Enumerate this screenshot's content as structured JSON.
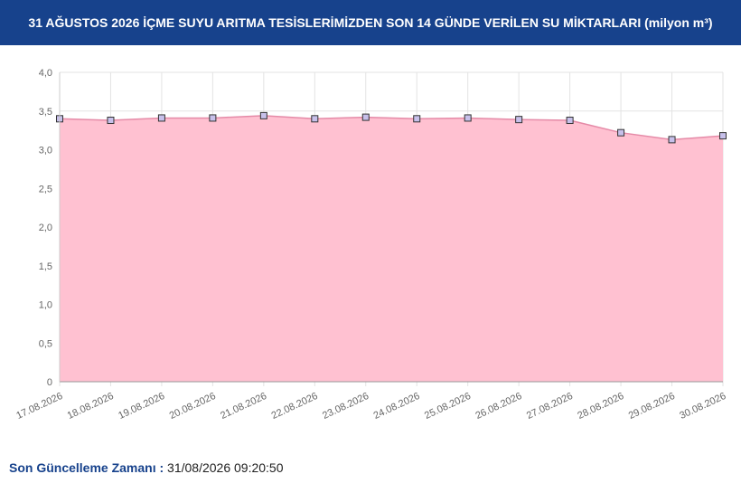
{
  "header": {
    "title": "31 AĞUSTOS 2026 İÇME SUYU ARITMA TESİSLERİMİZDEN SON 14 GÜNDE VERİLEN SU MİKTARLARI (milyon m³)"
  },
  "chart_data": {
    "type": "area",
    "categories": [
      "17.08.2026",
      "18.08.2026",
      "19.08.2026",
      "20.08.2026",
      "21.08.2026",
      "22.08.2026",
      "23.08.2026",
      "24.08.2026",
      "25.08.2026",
      "26.08.2026",
      "27.08.2026",
      "28.08.2026",
      "29.08.2026",
      "30.08.2026"
    ],
    "values": [
      3.4,
      3.38,
      3.41,
      3.41,
      3.44,
      3.4,
      3.42,
      3.4,
      3.41,
      3.39,
      3.38,
      3.22,
      3.13,
      3.18
    ],
    "color": "#e58aa7",
    "fill": "#ffc1d1",
    "marker_color": "#c7c0ea",
    "ylim": [
      0,
      4
    ],
    "yticks": [
      0,
      {
        "value": 0.5,
        "label": "0,5"
      },
      {
        "value": 1,
        "label": "1,0"
      },
      {
        "value": 1.5,
        "label": "1,5"
      },
      {
        "value": 2,
        "label": "2,0"
      },
      {
        "value": 2.5,
        "label": "2,5"
      },
      {
        "value": 3,
        "label": "3,0"
      },
      {
        "value": 3.5,
        "label": "3,5"
      },
      {
        "value": 4,
        "label": "4,0"
      }
    ],
    "grid": true
  },
  "footer": {
    "label": "Son Güncelleme Zamanı :",
    "value": "31/08/2026 09:20:50"
  }
}
